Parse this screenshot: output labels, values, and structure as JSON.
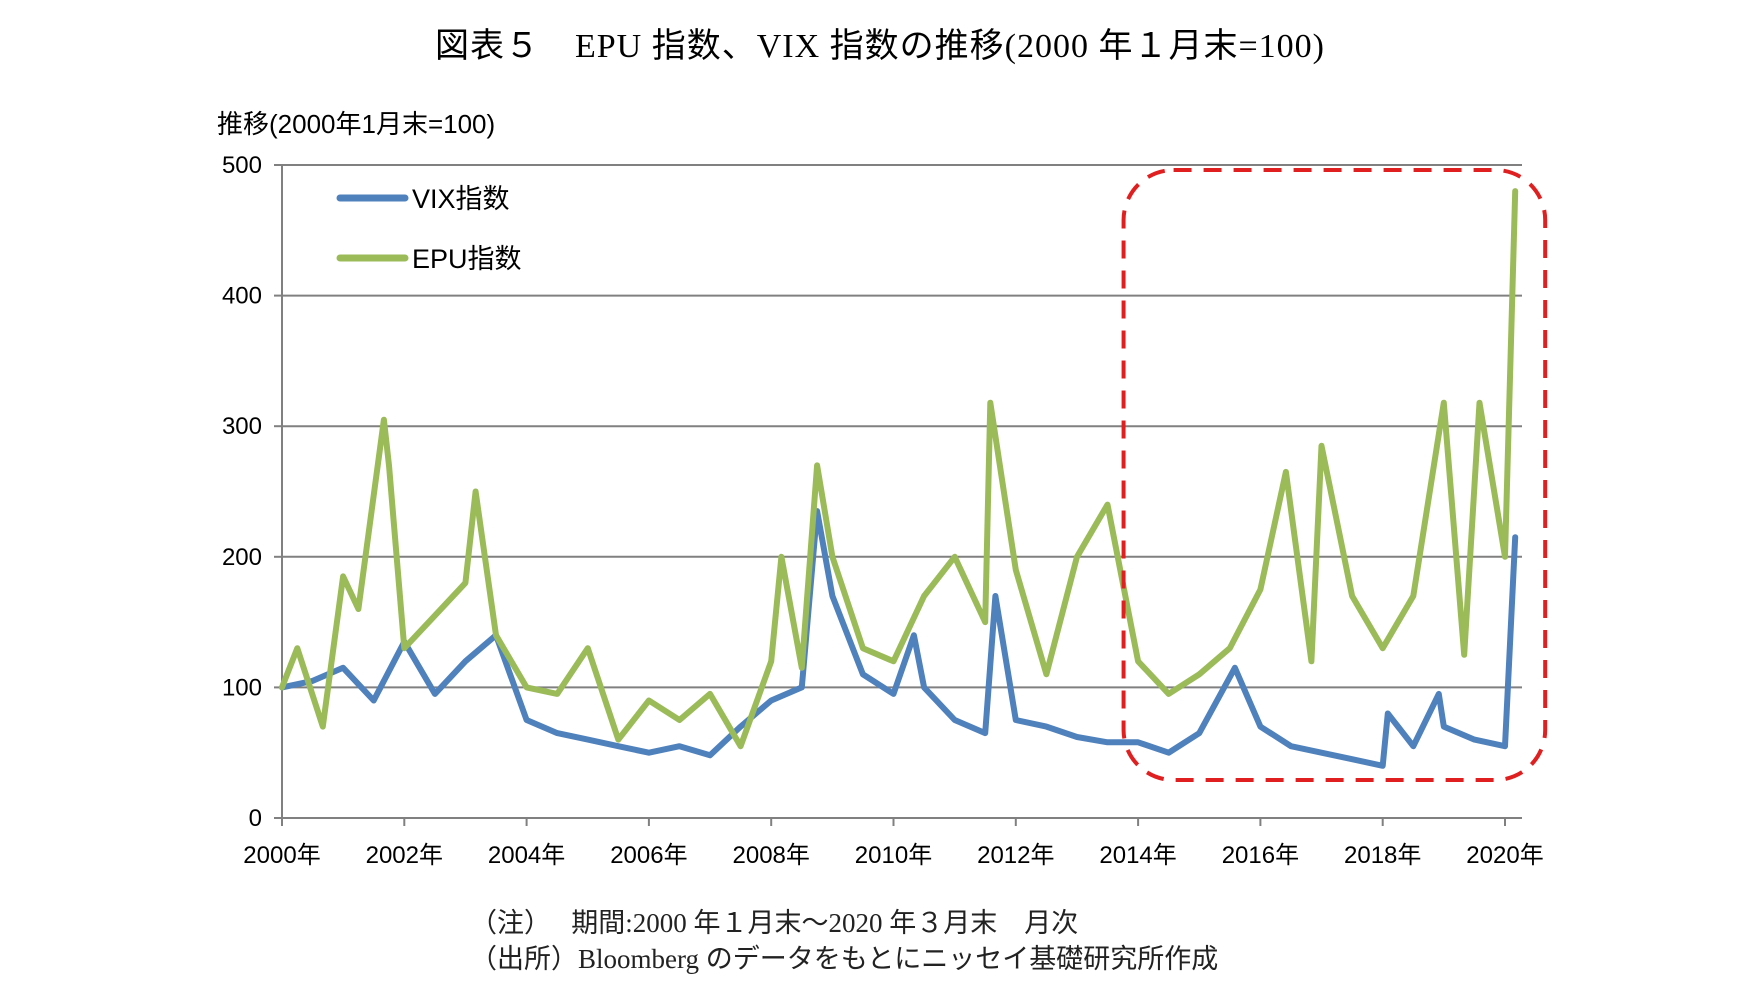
{
  "title": "図表５　EPU 指数、VIX 指数の推移(2000 年１月末=100)",
  "notes": {
    "line1": "（注）　 期間:2000 年１月末～2020 年３月末　月次",
    "line2": "（出所）Bloomberg のデータをもとにニッセイ基礎研究所作成"
  },
  "colors": {
    "vix": "#4f81bd",
    "epu": "#9bbb59",
    "grid": "#808080",
    "highlight": "#e02020"
  },
  "chart_data": {
    "type": "line",
    "title": "図表５　EPU 指数、VIX 指数の推移(2000 年１月末=100)",
    "ylabel": "推移(2000年1月末=100)",
    "xlabel": "",
    "ylim": [
      0,
      500
    ],
    "yticks": [
      0,
      100,
      200,
      300,
      400,
      500
    ],
    "xlim": [
      "2000-01",
      "2020-03"
    ],
    "xticks": [
      "2000年",
      "2002年",
      "2004年",
      "2006年",
      "2008年",
      "2010年",
      "2012年",
      "2014年",
      "2016年",
      "2018年",
      "2020年"
    ],
    "grid": "horizontal",
    "legend_position": "top-left",
    "highlight_region": {
      "x_start": "2014-06",
      "x_end": "2020-03",
      "style": "red-dashed-rounded-box"
    },
    "series": [
      {
        "name": "VIX指数",
        "color": "#4f81bd",
        "x": [
          "2000-01",
          "2000-07",
          "2001-01",
          "2001-07",
          "2002-01",
          "2002-07",
          "2003-01",
          "2003-07",
          "2004-01",
          "2004-07",
          "2005-01",
          "2005-07",
          "2006-01",
          "2006-07",
          "2007-01",
          "2007-07",
          "2008-01",
          "2008-07",
          "2008-10",
          "2009-01",
          "2009-07",
          "2010-01",
          "2010-05",
          "2010-07",
          "2011-01",
          "2011-07",
          "2011-09",
          "2012-01",
          "2012-07",
          "2013-01",
          "2013-07",
          "2014-01",
          "2014-07",
          "2015-01",
          "2015-08",
          "2016-01",
          "2016-07",
          "2017-01",
          "2017-07",
          "2018-01",
          "2018-02",
          "2018-07",
          "2018-12",
          "2019-01",
          "2019-07",
          "2020-01",
          "2020-03"
        ],
        "y": [
          100,
          105,
          115,
          90,
          135,
          95,
          120,
          140,
          75,
          65,
          60,
          55,
          50,
          55,
          48,
          70,
          90,
          100,
          235,
          170,
          110,
          95,
          140,
          100,
          75,
          65,
          170,
          75,
          70,
          62,
          58,
          58,
          50,
          65,
          115,
          70,
          55,
          50,
          45,
          40,
          80,
          55,
          95,
          70,
          60,
          55,
          215
        ]
      },
      {
        "name": "EPU指数",
        "color": "#9bbb59",
        "x": [
          "2000-01",
          "2000-04",
          "2000-09",
          "2001-01",
          "2001-04",
          "2001-09",
          "2001-10",
          "2002-01",
          "2002-07",
          "2003-01",
          "2003-03",
          "2003-07",
          "2004-01",
          "2004-07",
          "2005-01",
          "2005-07",
          "2006-01",
          "2006-07",
          "2007-01",
          "2007-07",
          "2008-01",
          "2008-03",
          "2008-07",
          "2008-10",
          "2009-01",
          "2009-07",
          "2010-01",
          "2010-07",
          "2011-01",
          "2011-07",
          "2011-08",
          "2012-01",
          "2012-07",
          "2013-01",
          "2013-07",
          "2014-01",
          "2014-07",
          "2015-01",
          "2015-07",
          "2016-01",
          "2016-06",
          "2016-11",
          "2017-01",
          "2017-07",
          "2018-01",
          "2018-07",
          "2019-01",
          "2019-05",
          "2019-08",
          "2020-01",
          "2020-03"
        ],
        "y": [
          100,
          130,
          70,
          185,
          160,
          305,
          270,
          130,
          155,
          180,
          250,
          140,
          100,
          95,
          130,
          60,
          90,
          75,
          95,
          55,
          120,
          200,
          115,
          270,
          200,
          130,
          120,
          170,
          200,
          150,
          318,
          190,
          110,
          200,
          240,
          120,
          95,
          110,
          130,
          175,
          265,
          120,
          285,
          170,
          130,
          170,
          318,
          125,
          318,
          200,
          480
        ]
      }
    ]
  }
}
